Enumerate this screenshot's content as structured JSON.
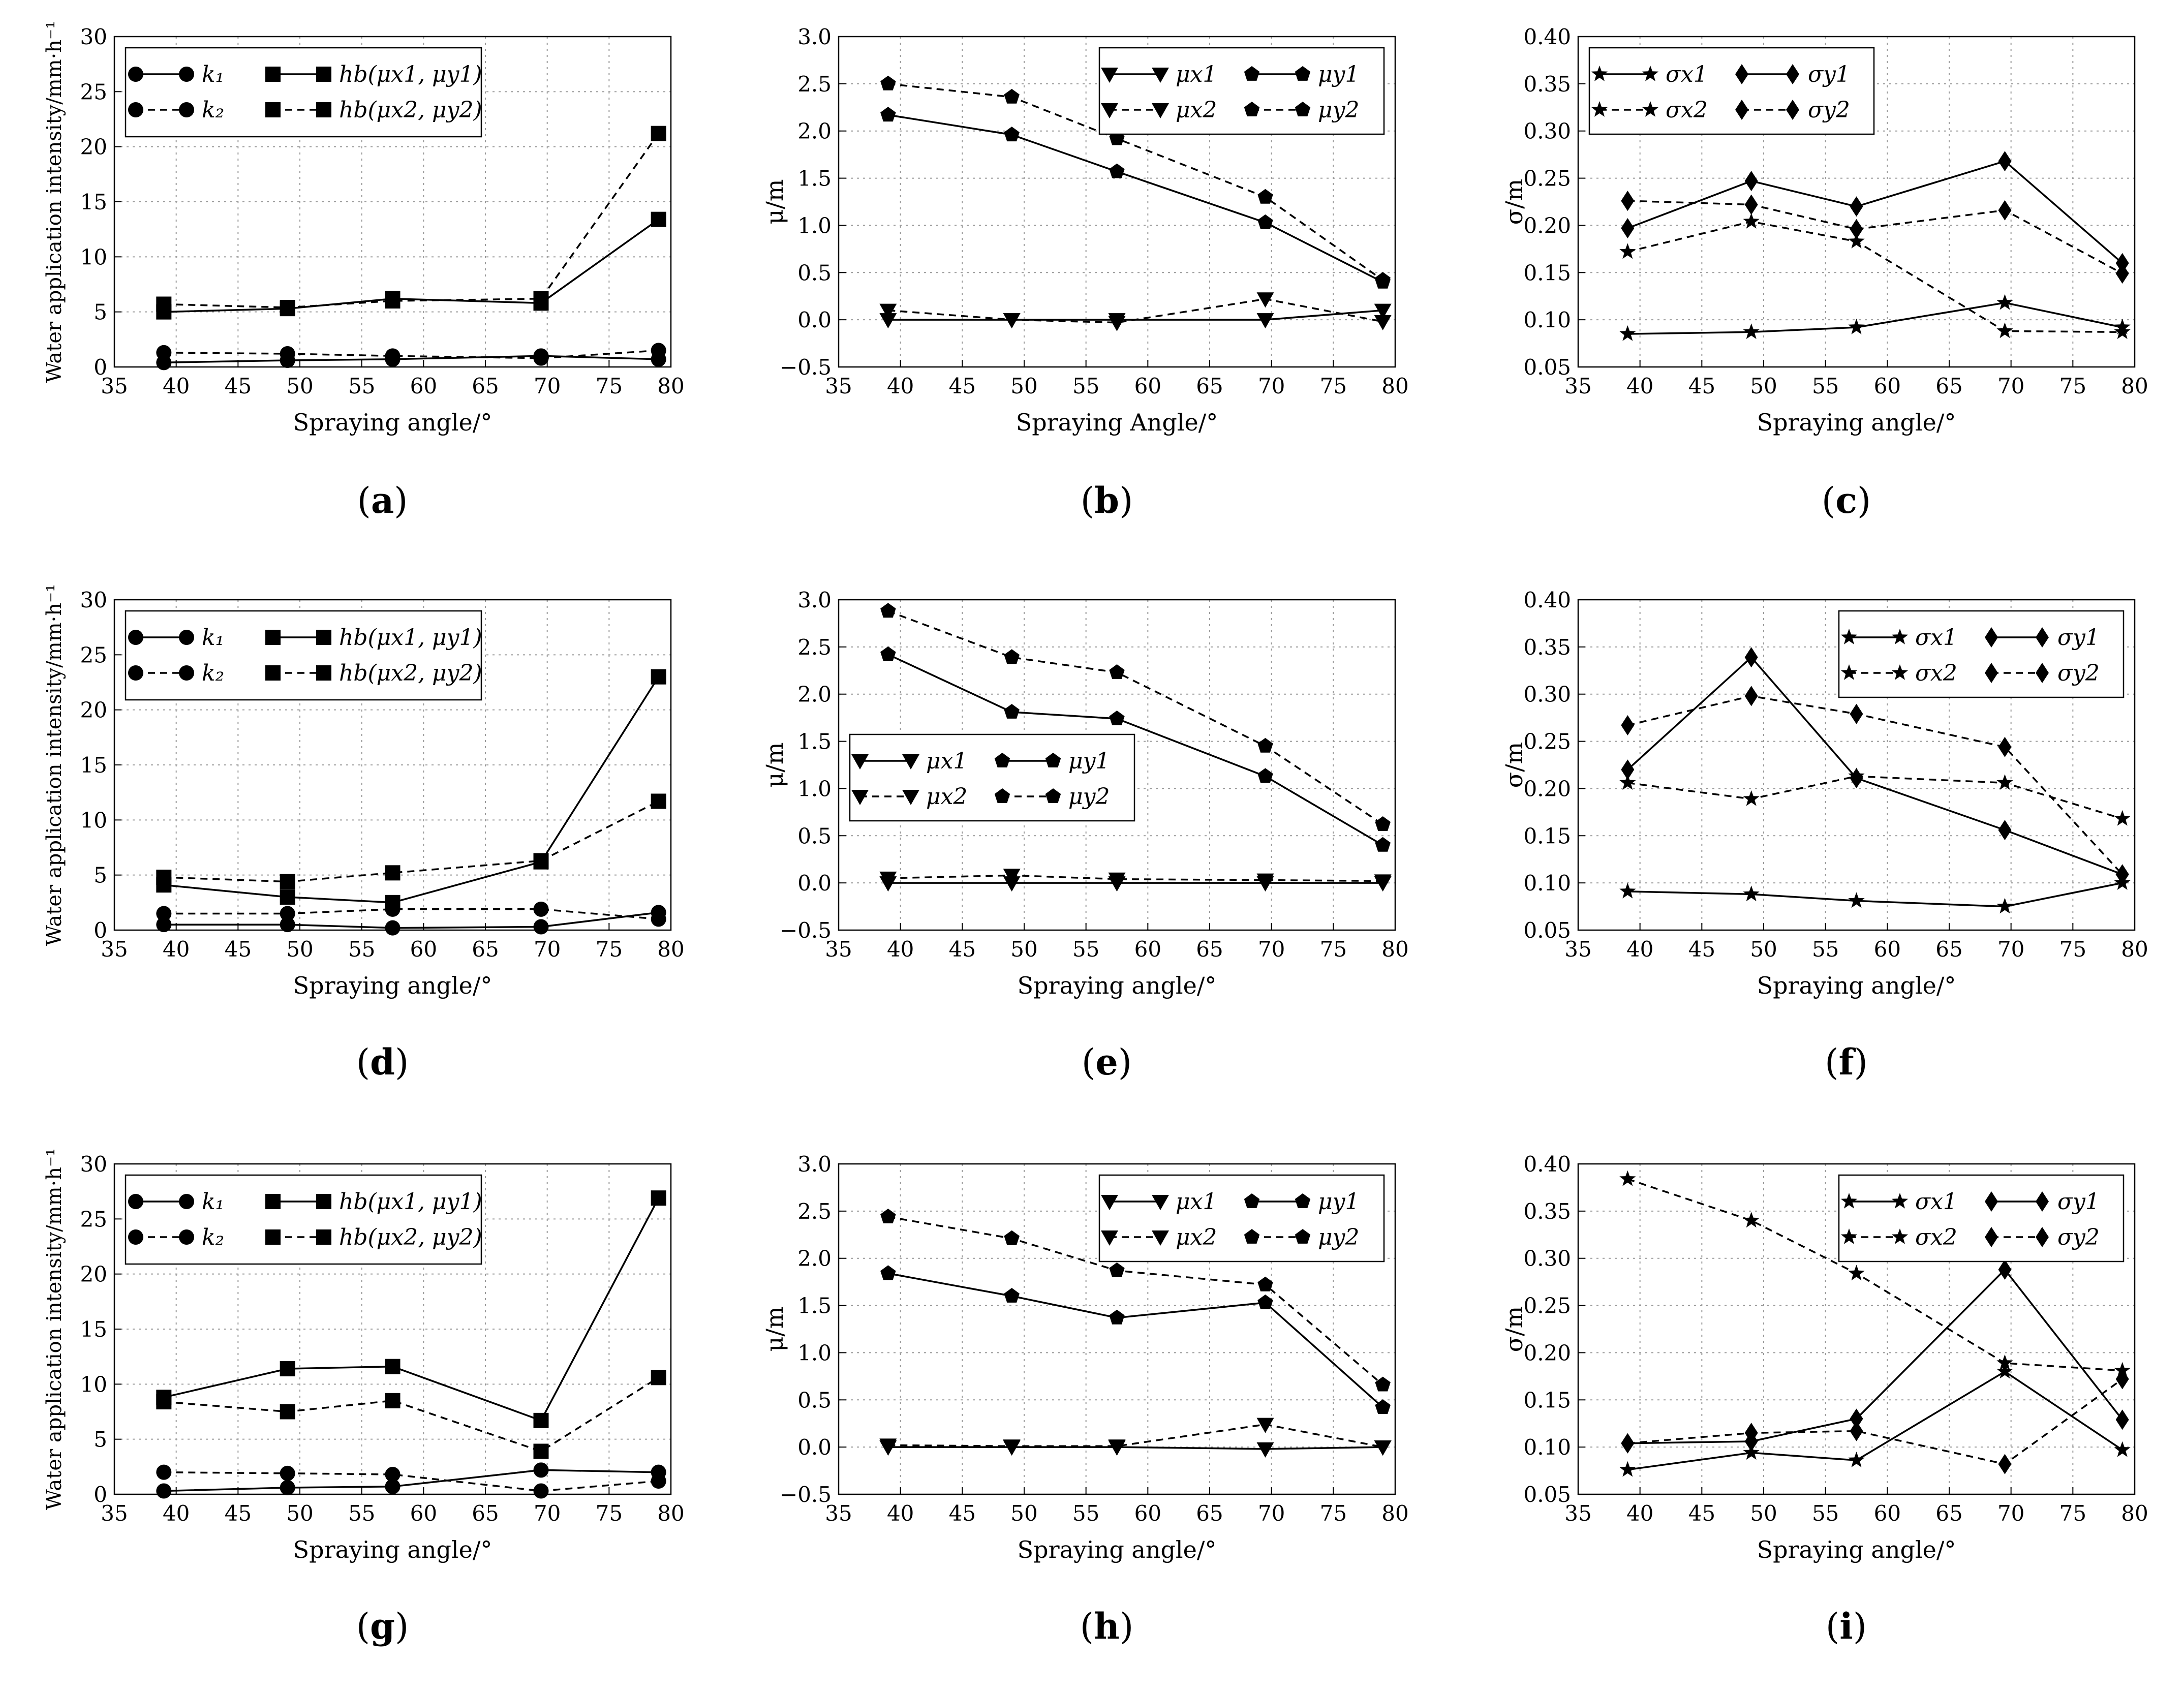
{
  "figure": {
    "x_ticks": [
      "35",
      "40",
      "45",
      "50",
      "55",
      "60",
      "65",
      "70",
      "75",
      "80"
    ],
    "x_values": [
      39.0,
      49.0,
      57.5,
      69.5,
      79.0
    ]
  },
  "chart_data": [
    {
      "id": "a",
      "type": "line",
      "panel_label": "a",
      "xlabel": "Spraying angle/°",
      "ylabel": "Water application intensity/mm·h⁻¹",
      "xlim": [
        35,
        80
      ],
      "ylim": [
        0,
        30
      ],
      "yticks": [
        "0",
        "5",
        "10",
        "15",
        "20",
        "25",
        "30"
      ],
      "ytick_values": [
        0,
        5,
        10,
        15,
        20,
        25,
        30
      ],
      "legend_position": "top-left",
      "series": [
        {
          "name": "k₁",
          "style": "solid",
          "marker": "circle",
          "values": [
            0.4,
            0.6,
            0.7,
            1.0,
            0.7
          ]
        },
        {
          "name": "k₂",
          "style": "dashed",
          "marker": "circle",
          "values": [
            1.3,
            1.2,
            1.0,
            0.8,
            1.5
          ]
        },
        {
          "name": "hb(μx1, μy1)",
          "style": "solid",
          "marker": "square",
          "values": [
            5.0,
            5.3,
            6.2,
            5.8,
            13.4
          ]
        },
        {
          "name": "hb(μx2, μy2)",
          "style": "dashed",
          "marker": "square",
          "values": [
            5.7,
            5.4,
            6.0,
            6.2,
            21.2
          ]
        }
      ]
    },
    {
      "id": "b",
      "type": "line",
      "panel_label": "b",
      "xlabel": "Spraying Angle/°",
      "ylabel": "μ/m",
      "xlim": [
        35,
        80
      ],
      "ylim": [
        -0.5,
        3.0
      ],
      "yticks": [
        "−0.5",
        "0.0",
        "0.5",
        "1.0",
        "1.5",
        "2.0",
        "2.5",
        "3.0"
      ],
      "ytick_values": [
        -0.5,
        0,
        0.5,
        1,
        1.5,
        2,
        2.5,
        3
      ],
      "legend_position": "top-right",
      "series": [
        {
          "name": "μx1",
          "style": "solid",
          "marker": "triangle",
          "values": [
            0.0,
            0.0,
            0.0,
            0.0,
            0.1
          ]
        },
        {
          "name": "μy1",
          "style": "solid",
          "marker": "pentagon",
          "values": [
            2.17,
            1.96,
            1.57,
            1.03,
            0.4
          ]
        },
        {
          "name": "μx2",
          "style": "dashed",
          "marker": "triangle",
          "values": [
            0.1,
            0.0,
            -0.03,
            0.22,
            -0.02
          ]
        },
        {
          "name": "μy2",
          "style": "dashed",
          "marker": "pentagon",
          "values": [
            2.5,
            2.36,
            1.92,
            1.3,
            0.42
          ]
        }
      ]
    },
    {
      "id": "c",
      "type": "line",
      "panel_label": "c",
      "xlabel": "Spraying angle/°",
      "ylabel": "σ/m",
      "xlim": [
        35,
        80
      ],
      "ylim": [
        0.05,
        0.4
      ],
      "yticks": [
        "0.05",
        "0.10",
        "0.15",
        "0.20",
        "0.25",
        "0.30",
        "0.35",
        "0.40"
      ],
      "ytick_values": [
        0.05,
        0.1,
        0.15,
        0.2,
        0.25,
        0.3,
        0.35,
        0.4
      ],
      "legend_position": "top-left",
      "series": [
        {
          "name": "σx1",
          "style": "solid",
          "marker": "star",
          "values": [
            0.085,
            0.087,
            0.092,
            0.118,
            0.092
          ]
        },
        {
          "name": "σy1",
          "style": "solid",
          "marker": "diamond",
          "values": [
            0.197,
            0.247,
            0.22,
            0.268,
            0.16
          ]
        },
        {
          "name": "σx2",
          "style": "dashed",
          "marker": "star",
          "values": [
            0.172,
            0.204,
            0.183,
            0.088,
            0.087
          ]
        },
        {
          "name": "σy2",
          "style": "dashed",
          "marker": "diamond",
          "values": [
            0.226,
            0.222,
            0.196,
            0.216,
            0.149
          ]
        }
      ]
    },
    {
      "id": "d",
      "type": "line",
      "panel_label": "d",
      "xlabel": "Spraying angle/°",
      "ylabel": "Water application intensity/mm·h⁻¹",
      "xlim": [
        35,
        80
      ],
      "ylim": [
        0,
        30
      ],
      "yticks": [
        "0",
        "5",
        "10",
        "15",
        "20",
        "25",
        "30"
      ],
      "ytick_values": [
        0,
        5,
        10,
        15,
        20,
        25,
        30
      ],
      "legend_position": "top-left",
      "series": [
        {
          "name": "k₁",
          "style": "solid",
          "marker": "circle",
          "values": [
            0.5,
            0.5,
            0.2,
            0.3,
            1.6
          ]
        },
        {
          "name": "k₂",
          "style": "dashed",
          "marker": "circle",
          "values": [
            1.5,
            1.5,
            1.9,
            1.9,
            1.0
          ]
        },
        {
          "name": "hb(μx1, μy1)",
          "style": "solid",
          "marker": "square",
          "values": [
            4.1,
            3.0,
            2.5,
            6.2,
            23.0
          ]
        },
        {
          "name": "hb(μx2, μy2)",
          "style": "dashed",
          "marker": "square",
          "values": [
            4.8,
            4.4,
            5.2,
            6.3,
            11.7
          ]
        }
      ]
    },
    {
      "id": "e",
      "type": "line",
      "panel_label": "e",
      "xlabel": "Spraying angle/°",
      "ylabel": "μ/m",
      "xlim": [
        35,
        80
      ],
      "ylim": [
        -0.5,
        3.0
      ],
      "yticks": [
        "−0.5",
        "0.0",
        "0.5",
        "1.0",
        "1.5",
        "2.0",
        "2.5",
        "3.0"
      ],
      "ytick_values": [
        -0.5,
        0,
        0.5,
        1,
        1.5,
        2,
        2.5,
        3
      ],
      "legend_position": "center-left",
      "series": [
        {
          "name": "μx1",
          "style": "solid",
          "marker": "triangle",
          "values": [
            0.0,
            0.0,
            0.0,
            0.0,
            0.0
          ]
        },
        {
          "name": "μy1",
          "style": "solid",
          "marker": "pentagon",
          "values": [
            2.42,
            1.81,
            1.74,
            1.13,
            0.4
          ]
        },
        {
          "name": "μx2",
          "style": "dashed",
          "marker": "triangle",
          "values": [
            0.05,
            0.08,
            0.04,
            0.03,
            0.02
          ]
        },
        {
          "name": "μy2",
          "style": "dashed",
          "marker": "pentagon",
          "values": [
            2.88,
            2.39,
            2.23,
            1.45,
            0.62
          ]
        }
      ]
    },
    {
      "id": "f",
      "type": "line",
      "panel_label": "f",
      "xlabel": "Spraying angle/°",
      "ylabel": "σ/m",
      "xlim": [
        35,
        80
      ],
      "ylim": [
        0.05,
        0.4
      ],
      "yticks": [
        "0.05",
        "0.10",
        "0.15",
        "0.20",
        "0.25",
        "0.30",
        "0.35",
        "0.40"
      ],
      "ytick_values": [
        0.05,
        0.1,
        0.15,
        0.2,
        0.25,
        0.3,
        0.35,
        0.4
      ],
      "legend_position": "top-right",
      "series": [
        {
          "name": "σx1",
          "style": "solid",
          "marker": "star",
          "values": [
            0.091,
            0.088,
            0.081,
            0.075,
            0.1
          ]
        },
        {
          "name": "σy1",
          "style": "solid",
          "marker": "diamond",
          "values": [
            0.22,
            0.339,
            0.211,
            0.156,
            0.109
          ]
        },
        {
          "name": "σx2",
          "style": "dashed",
          "marker": "star",
          "values": [
            0.206,
            0.189,
            0.213,
            0.206,
            0.168
          ]
        },
        {
          "name": "σy2",
          "style": "dashed",
          "marker": "diamond",
          "values": [
            0.267,
            0.298,
            0.279,
            0.244,
            0.109
          ]
        }
      ]
    },
    {
      "id": "g",
      "type": "line",
      "panel_label": "g",
      "xlabel": "Spraying angle/°",
      "ylabel": "Water application intensity/mm·h⁻¹",
      "xlim": [
        35,
        80
      ],
      "ylim": [
        0,
        30
      ],
      "yticks": [
        "0",
        "5",
        "10",
        "15",
        "20",
        "25",
        "30"
      ],
      "ytick_values": [
        0,
        5,
        10,
        15,
        20,
        25,
        30
      ],
      "legend_position": "top-left",
      "series": [
        {
          "name": "k₁",
          "style": "solid",
          "marker": "circle",
          "values": [
            0.3,
            0.6,
            0.7,
            2.2,
            2.0
          ]
        },
        {
          "name": "k₂",
          "style": "dashed",
          "marker": "circle",
          "values": [
            2.0,
            1.9,
            1.8,
            0.3,
            1.2
          ]
        },
        {
          "name": "hb(μx1, μy1)",
          "style": "solid",
          "marker": "square",
          "values": [
            8.8,
            11.4,
            11.6,
            6.7,
            26.9
          ]
        },
        {
          "name": "hb(μx2, μy2)",
          "style": "dashed",
          "marker": "square",
          "values": [
            8.4,
            7.5,
            8.5,
            3.9,
            10.6
          ]
        }
      ]
    },
    {
      "id": "h",
      "type": "line",
      "panel_label": "h",
      "xlabel": "Spraying angle/°",
      "ylabel": "μ/m",
      "xlim": [
        35,
        80
      ],
      "ylim": [
        -0.5,
        3.0
      ],
      "yticks": [
        "−0.5",
        "0.0",
        "0.5",
        "1.0",
        "1.5",
        "2.0",
        "2.5",
        "3.0"
      ],
      "ytick_values": [
        -0.5,
        0,
        0.5,
        1,
        1.5,
        2,
        2.5,
        3
      ],
      "legend_position": "top-right",
      "series": [
        {
          "name": "μx1",
          "style": "solid",
          "marker": "triangle",
          "values": [
            0.0,
            0.0,
            0.0,
            -0.02,
            0.0
          ]
        },
        {
          "name": "μy1",
          "style": "solid",
          "marker": "pentagon",
          "values": [
            1.84,
            1.6,
            1.37,
            1.53,
            0.42
          ]
        },
        {
          "name": "μx2",
          "style": "dashed",
          "marker": "triangle",
          "values": [
            0.02,
            0.01,
            0.01,
            0.24,
            0.0
          ]
        },
        {
          "name": "μy2",
          "style": "dashed",
          "marker": "pentagon",
          "values": [
            2.44,
            2.21,
            1.87,
            1.72,
            0.66
          ]
        }
      ]
    },
    {
      "id": "i",
      "type": "line",
      "panel_label": "i",
      "xlabel": "Spraying angle/°",
      "ylabel": "σ/m",
      "xlim": [
        35,
        80
      ],
      "ylim": [
        0.05,
        0.4
      ],
      "yticks": [
        "0.05",
        "0.10",
        "0.15",
        "0.20",
        "0.25",
        "0.30",
        "0.35",
        "0.40"
      ],
      "ytick_values": [
        0.05,
        0.1,
        0.15,
        0.2,
        0.25,
        0.3,
        0.35,
        0.4
      ],
      "legend_position": "top-right",
      "series": [
        {
          "name": "σx1",
          "style": "solid",
          "marker": "star",
          "values": [
            0.076,
            0.094,
            0.086,
            0.18,
            0.097
          ]
        },
        {
          "name": "σy1",
          "style": "solid",
          "marker": "diamond",
          "values": [
            0.104,
            0.106,
            0.13,
            0.288,
            0.129
          ]
        },
        {
          "name": "σx2",
          "style": "dashed",
          "marker": "star",
          "values": [
            0.384,
            0.34,
            0.284,
            0.189,
            0.181
          ]
        },
        {
          "name": "σy2",
          "style": "dashed",
          "marker": "diamond",
          "values": [
            0.104,
            0.115,
            0.117,
            0.082,
            0.172
          ]
        }
      ]
    }
  ]
}
